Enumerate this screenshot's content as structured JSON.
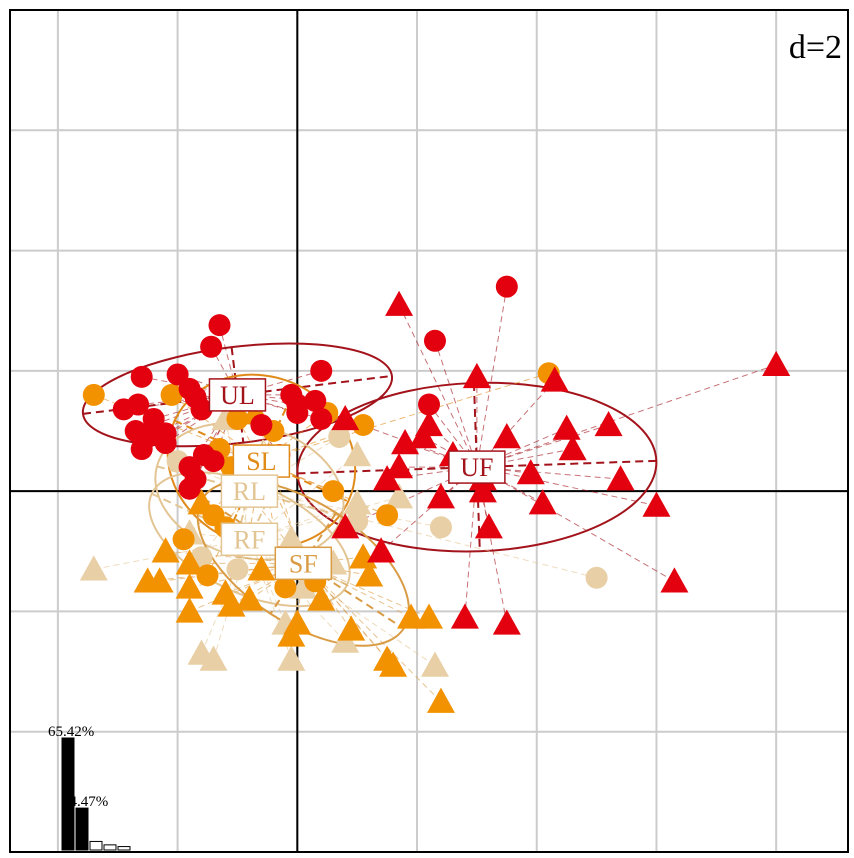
{
  "chart_data": {
    "type": "scatter",
    "scale_label": "d=2",
    "xlim": [
      -2.4,
      4.6
    ],
    "ylim": [
      -3.0,
      4.0
    ],
    "grid": true,
    "groups": [
      {
        "name": "UL",
        "color": "#e3000f",
        "ellipse_color": "#a3131b",
        "center": [
          -0.5,
          0.8
        ],
        "rx": 1.3,
        "ry": 0.4,
        "angle": 7
      },
      {
        "name": "UF",
        "color": "#e3000f",
        "ellipse_color": "#a3131b",
        "center": [
          1.5,
          0.2
        ],
        "rx": 1.5,
        "ry": 0.7,
        "angle": 2
      },
      {
        "name": "SL",
        "color": "#f39200",
        "ellipse_color": "#e08a1a",
        "center": [
          -0.3,
          0.25
        ],
        "rx": 0.8,
        "ry": 0.7,
        "angle": -25
      },
      {
        "name": "RL",
        "color": "#e8cfa5",
        "ellipse_color": "#e3c594",
        "center": [
          -0.4,
          0.0
        ],
        "rx": 0.8,
        "ry": 0.55,
        "angle": -15
      },
      {
        "name": "RF",
        "color": "#e8cfa5",
        "ellipse_color": "#e3c594",
        "center": [
          -0.4,
          -0.4
        ],
        "rx": 0.9,
        "ry": 0.45,
        "angle": -25
      },
      {
        "name": "SF",
        "color": "#f39200",
        "ellipse_color": "#d99b44",
        "center": [
          0.05,
          -0.6
        ],
        "rx": 1.0,
        "ry": 0.5,
        "angle": -33
      }
    ],
    "points": [
      {
        "group": "UL",
        "shape": "circle",
        "x": -0.65,
        "y": 1.38
      },
      {
        "group": "UL",
        "shape": "circle",
        "x": -0.72,
        "y": 1.2
      },
      {
        "group": "UL",
        "shape": "circle",
        "x": -1.3,
        "y": 0.95
      },
      {
        "group": "UL",
        "shape": "circle",
        "x": -1.0,
        "y": 0.97
      },
      {
        "group": "UL",
        "shape": "circle",
        "x": -0.9,
        "y": 0.85
      },
      {
        "group": "UL",
        "shape": "circle",
        "x": -1.45,
        "y": 0.68
      },
      {
        "group": "UL",
        "shape": "circle",
        "x": -1.33,
        "y": 0.72
      },
      {
        "group": "UL",
        "shape": "circle",
        "x": -1.2,
        "y": 0.6
      },
      {
        "group": "UL",
        "shape": "circle",
        "x": -1.35,
        "y": 0.5
      },
      {
        "group": "UL",
        "shape": "circle",
        "x": -1.1,
        "y": 0.48
      },
      {
        "group": "UL",
        "shape": "circle",
        "x": -1.25,
        "y": 0.45
      },
      {
        "group": "UL",
        "shape": "circle",
        "x": -1.3,
        "y": 0.35
      },
      {
        "group": "UL",
        "shape": "circle",
        "x": -1.1,
        "y": 0.4
      },
      {
        "group": "UL",
        "shape": "circle",
        "x": -0.85,
        "y": 0.78
      },
      {
        "group": "UL",
        "shape": "circle",
        "x": -0.8,
        "y": 0.68
      },
      {
        "group": "UL",
        "shape": "circle",
        "x": -0.3,
        "y": 0.55
      },
      {
        "group": "UL",
        "shape": "circle",
        "x": 0.15,
        "y": 0.75
      },
      {
        "group": "UL",
        "shape": "circle",
        "x": -0.05,
        "y": 0.8
      },
      {
        "group": "UL",
        "shape": "circle",
        "x": 0.0,
        "y": 0.72
      },
      {
        "group": "UL",
        "shape": "circle",
        "x": 0.0,
        "y": 0.65
      },
      {
        "group": "UL",
        "shape": "circle",
        "x": 0.2,
        "y": 1.0
      },
      {
        "group": "UL",
        "shape": "circle",
        "x": 0.2,
        "y": 0.6
      },
      {
        "group": "UL",
        "shape": "circle",
        "x": -0.15,
        "y": 0.3
      },
      {
        "group": "UL",
        "shape": "circle",
        "x": -0.78,
        "y": 0.3
      },
      {
        "group": "UL",
        "shape": "circle",
        "x": -0.9,
        "y": 0.2
      },
      {
        "group": "UL",
        "shape": "circle",
        "x": -0.85,
        "y": 0.1
      },
      {
        "group": "UL",
        "shape": "circle",
        "x": -0.9,
        "y": 0.02
      },
      {
        "group": "UL",
        "shape": "circle",
        "x": -0.7,
        "y": 0.25
      },
      {
        "group": "UF",
        "shape": "circle",
        "x": 1.75,
        "y": 1.7
      },
      {
        "group": "UF",
        "shape": "circle",
        "x": 1.15,
        "y": 1.25
      },
      {
        "group": "UF",
        "shape": "circle",
        "x": 1.1,
        "y": 0.72
      },
      {
        "group": "UF",
        "shape": "triangle",
        "x": 0.85,
        "y": 1.55
      },
      {
        "group": "UF",
        "shape": "triangle",
        "x": 4.0,
        "y": 1.05
      },
      {
        "group": "UF",
        "shape": "triangle",
        "x": 1.5,
        "y": 0.95
      },
      {
        "group": "UF",
        "shape": "triangle",
        "x": 2.15,
        "y": 0.92
      },
      {
        "group": "UF",
        "shape": "triangle",
        "x": 1.1,
        "y": 0.55
      },
      {
        "group": "UF",
        "shape": "triangle",
        "x": 1.05,
        "y": 0.45
      },
      {
        "group": "UF",
        "shape": "triangle",
        "x": 0.4,
        "y": 0.6
      },
      {
        "group": "UF",
        "shape": "triangle",
        "x": 1.75,
        "y": 0.45
      },
      {
        "group": "UF",
        "shape": "triangle",
        "x": 2.25,
        "y": 0.52
      },
      {
        "group": "UF",
        "shape": "triangle",
        "x": 2.6,
        "y": 0.55
      },
      {
        "group": "UF",
        "shape": "triangle",
        "x": 2.3,
        "y": 0.35
      },
      {
        "group": "UF",
        "shape": "triangle",
        "x": 0.9,
        "y": 0.4
      },
      {
        "group": "UF",
        "shape": "triangle",
        "x": 0.85,
        "y": 0.2
      },
      {
        "group": "UF",
        "shape": "triangle",
        "x": 0.75,
        "y": 0.1
      },
      {
        "group": "UF",
        "shape": "triangle",
        "x": 1.3,
        "y": 0.3
      },
      {
        "group": "UF",
        "shape": "triangle",
        "x": 1.55,
        "y": 0.1
      },
      {
        "group": "UF",
        "shape": "triangle",
        "x": 1.55,
        "y": 0.0
      },
      {
        "group": "UF",
        "shape": "triangle",
        "x": 1.95,
        "y": 0.15
      },
      {
        "group": "UF",
        "shape": "triangle",
        "x": 2.05,
        "y": -0.1
      },
      {
        "group": "UF",
        "shape": "triangle",
        "x": 2.7,
        "y": 0.1
      },
      {
        "group": "UF",
        "shape": "triangle",
        "x": 3.0,
        "y": -0.12
      },
      {
        "group": "UF",
        "shape": "triangle",
        "x": 1.2,
        "y": -0.05
      },
      {
        "group": "UF",
        "shape": "triangle",
        "x": 1.6,
        "y": -0.3
      },
      {
        "group": "UF",
        "shape": "triangle",
        "x": 0.7,
        "y": -0.5
      },
      {
        "group": "UF",
        "shape": "triangle",
        "x": 3.15,
        "y": -0.75
      },
      {
        "group": "UF",
        "shape": "triangle",
        "x": 1.4,
        "y": -1.05
      },
      {
        "group": "UF",
        "shape": "triangle",
        "x": 1.75,
        "y": -1.1
      },
      {
        "group": "UF",
        "shape": "triangle",
        "x": 0.4,
        "y": -0.3
      },
      {
        "group": "SL",
        "shape": "circle",
        "x": -1.7,
        "y": 0.8
      },
      {
        "group": "SL",
        "shape": "circle",
        "x": 2.1,
        "y": 0.98
      },
      {
        "group": "SL",
        "shape": "circle",
        "x": -1.05,
        "y": 0.8
      },
      {
        "group": "SL",
        "shape": "circle",
        "x": -0.5,
        "y": 0.6
      },
      {
        "group": "SL",
        "shape": "circle",
        "x": -0.2,
        "y": 0.5
      },
      {
        "group": "SL",
        "shape": "circle",
        "x": 0.25,
        "y": 0.65
      },
      {
        "group": "SL",
        "shape": "circle",
        "x": 0.55,
        "y": 0.55
      },
      {
        "group": "SL",
        "shape": "circle",
        "x": -0.65,
        "y": 0.35
      },
      {
        "group": "SL",
        "shape": "circle",
        "x": -0.55,
        "y": 0.2
      },
      {
        "group": "SL",
        "shape": "circle",
        "x": 0.3,
        "y": 0.0
      },
      {
        "group": "SL",
        "shape": "circle",
        "x": 0.75,
        "y": -0.2
      },
      {
        "group": "SL",
        "shape": "circle",
        "x": -0.7,
        "y": -0.2
      },
      {
        "group": "SL",
        "shape": "circle",
        "x": -0.6,
        "y": -0.3
      },
      {
        "group": "SL",
        "shape": "circle",
        "x": -0.4,
        "y": -0.35
      },
      {
        "group": "SL",
        "shape": "circle",
        "x": -0.95,
        "y": -0.4
      },
      {
        "group": "SL",
        "shape": "circle",
        "x": -0.75,
        "y": -0.7
      },
      {
        "group": "SL",
        "shape": "circle",
        "x": -0.1,
        "y": -0.8
      },
      {
        "group": "SL",
        "shape": "circle",
        "x": 0.15,
        "y": -0.75
      },
      {
        "group": "SF",
        "shape": "triangle",
        "x": -0.35,
        "y": 0.65
      },
      {
        "group": "SF",
        "shape": "triangle",
        "x": -0.5,
        "y": 0.1
      },
      {
        "group": "SF",
        "shape": "triangle",
        "x": -0.8,
        "y": -0.1
      },
      {
        "group": "SF",
        "shape": "triangle",
        "x": -1.1,
        "y": -0.5
      },
      {
        "group": "SF",
        "shape": "triangle",
        "x": -0.9,
        "y": -0.6
      },
      {
        "group": "SF",
        "shape": "triangle",
        "x": -1.15,
        "y": -0.75
      },
      {
        "group": "SF",
        "shape": "triangle",
        "x": -0.9,
        "y": -0.8
      },
      {
        "group": "SF",
        "shape": "triangle",
        "x": -0.6,
        "y": -0.85
      },
      {
        "group": "SF",
        "shape": "triangle",
        "x": -0.55,
        "y": -0.95
      },
      {
        "group": "SF",
        "shape": "triangle",
        "x": -0.3,
        "y": -0.65
      },
      {
        "group": "SF",
        "shape": "triangle",
        "x": -0.4,
        "y": -0.9
      },
      {
        "group": "SF",
        "shape": "triangle",
        "x": 0.6,
        "y": -0.7
      },
      {
        "group": "SF",
        "shape": "triangle",
        "x": 0.55,
        "y": -0.55
      },
      {
        "group": "SF",
        "shape": "triangle",
        "x": 0.2,
        "y": -0.9
      },
      {
        "group": "SF",
        "shape": "triangle",
        "x": 0.0,
        "y": -1.1
      },
      {
        "group": "SF",
        "shape": "triangle",
        "x": -0.05,
        "y": -1.2
      },
      {
        "group": "SF",
        "shape": "triangle",
        "x": 0.45,
        "y": -1.15
      },
      {
        "group": "SF",
        "shape": "triangle",
        "x": 0.95,
        "y": -1.05
      },
      {
        "group": "SF",
        "shape": "triangle",
        "x": 1.1,
        "y": -1.05
      },
      {
        "group": "SF",
        "shape": "triangle",
        "x": 0.75,
        "y": -1.4
      },
      {
        "group": "SF",
        "shape": "triangle",
        "x": 0.8,
        "y": -1.45
      },
      {
        "group": "SF",
        "shape": "triangle",
        "x": 1.2,
        "y": -1.75
      },
      {
        "group": "SF",
        "shape": "triangle",
        "x": -1.25,
        "y": -0.75
      },
      {
        "group": "SF",
        "shape": "triangle",
        "x": -0.9,
        "y": -1.0
      },
      {
        "group": "RL",
        "shape": "circle",
        "x": 0.35,
        "y": 0.45
      },
      {
        "group": "RL",
        "shape": "circle",
        "x": -0.2,
        "y": 0.2
      },
      {
        "group": "RL",
        "shape": "circle",
        "x": 0.5,
        "y": -0.25
      },
      {
        "group": "RL",
        "shape": "circle",
        "x": 1.2,
        "y": -0.3
      },
      {
        "group": "RL",
        "shape": "circle",
        "x": 2.5,
        "y": -0.72
      },
      {
        "group": "RL",
        "shape": "circle",
        "x": -1.0,
        "y": 0.25
      },
      {
        "group": "RL",
        "shape": "circle",
        "x": -0.8,
        "y": -0.55
      },
      {
        "group": "RL",
        "shape": "circle",
        "x": -0.5,
        "y": -0.65
      },
      {
        "group": "RF",
        "shape": "triangle",
        "x": -1.7,
        "y": -0.65
      },
      {
        "group": "RF",
        "shape": "triangle",
        "x": -0.6,
        "y": 0.6
      },
      {
        "group": "RF",
        "shape": "triangle",
        "x": 0.5,
        "y": 0.3
      },
      {
        "group": "RF",
        "shape": "triangle",
        "x": 0.85,
        "y": -0.05
      },
      {
        "group": "RF",
        "shape": "triangle",
        "x": 0.5,
        "y": -0.1
      },
      {
        "group": "RF",
        "shape": "triangle",
        "x": -0.05,
        "y": -0.4
      },
      {
        "group": "RF",
        "shape": "triangle",
        "x": 0.3,
        "y": -0.6
      },
      {
        "group": "RF",
        "shape": "triangle",
        "x": -0.9,
        "y": -0.35
      },
      {
        "group": "RF",
        "shape": "triangle",
        "x": -0.1,
        "y": -1.1
      },
      {
        "group": "RF",
        "shape": "triangle",
        "x": -0.8,
        "y": -1.35
      },
      {
        "group": "RF",
        "shape": "triangle",
        "x": -0.7,
        "y": -1.4
      },
      {
        "group": "RF",
        "shape": "triangle",
        "x": -0.05,
        "y": -1.4
      },
      {
        "group": "RF",
        "shape": "triangle",
        "x": 0.4,
        "y": -1.25
      },
      {
        "group": "RF",
        "shape": "triangle",
        "x": 1.15,
        "y": -1.45
      },
      {
        "group": "RF",
        "shape": "triangle",
        "x": 0.05,
        "y": -0.8
      }
    ],
    "eigenvalues": {
      "values": [
        65.42,
        24.47,
        5.0,
        3.0,
        2.0
      ],
      "labels": [
        "65.42%",
        "24.47%"
      ]
    }
  }
}
